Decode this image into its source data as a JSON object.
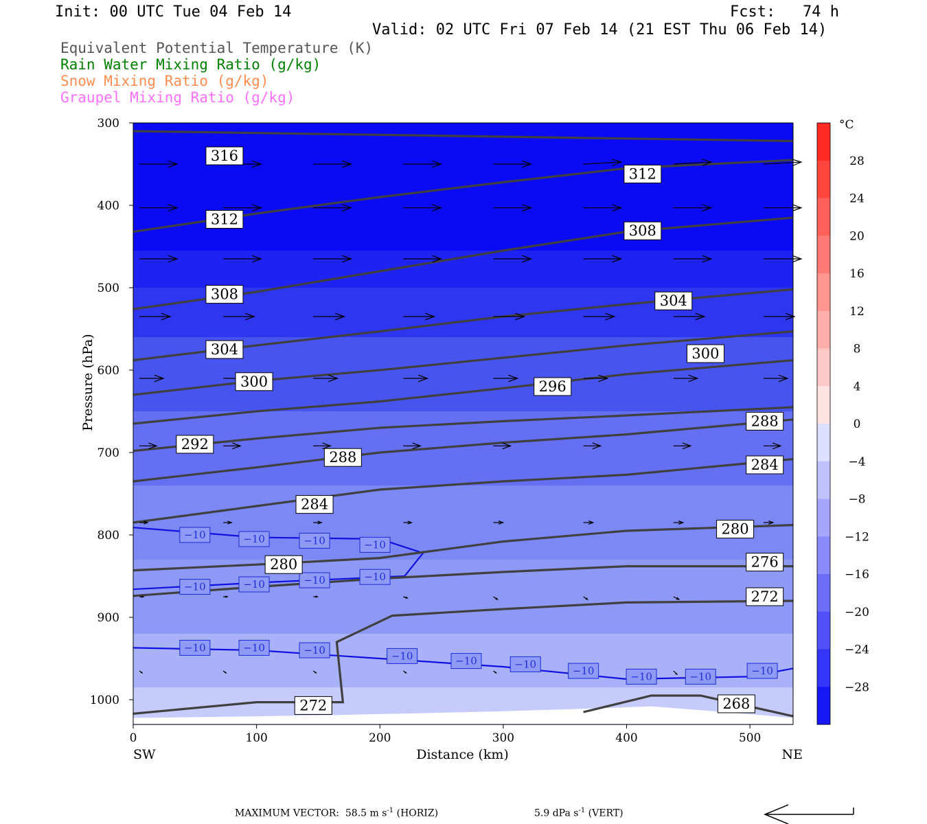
{
  "header": {
    "init": "Init: 00 UTC Tue 04 Feb 14",
    "fcst": "Fcst:   74 h",
    "valid": "Valid: 02 UTC Fri 07 Feb 14 (21 EST Thu 06 Feb 14)"
  },
  "legend": [
    {
      "label": "Equivalent Potential Temperature (K)",
      "color": "#555555"
    },
    {
      "label": "Rain Water Mixing Ratio (g/kg)",
      "color": "#008000"
    },
    {
      "label": "Snow Mixing Ratio (g/kg)",
      "color": "#ff8c50"
    },
    {
      "label": "Graupel Mixing Ratio (g/kg)",
      "color": "#ff70ff"
    }
  ],
  "footer": {
    "max_vector": "MAXIMUM VECTOR:  58.5 m s",
    "horiz_sup": "-1",
    "horiz_unit": " (HORIZ)",
    "vert": "5.9 dPa s",
    "vert_sup": "-1",
    "vert_unit": " (VERT)"
  },
  "colors": {
    "theta_e": "#404040",
    "temp_contour": "#1010e0",
    "background_deep": "#0000f0"
  },
  "chart_data": {
    "type": "cross-section",
    "xlabel": "Distance (km)",
    "ylabel": "Pressure (hPa)",
    "x_endpoints": [
      "SW",
      "NE"
    ],
    "xlim": [
      0,
      535
    ],
    "ylim": [
      1030,
      300
    ],
    "x_ticks": [
      0,
      100,
      200,
      300,
      400,
      500
    ],
    "y_ticks": [
      300,
      400,
      500,
      600,
      700,
      800,
      900,
      1000
    ],
    "colorbar": {
      "unit": "°C",
      "labels": [
        28,
        24,
        20,
        16,
        12,
        8,
        4,
        0,
        -4,
        -8,
        -12,
        -16,
        -20,
        -24,
        -28
      ],
      "range": [
        -32,
        32
      ]
    },
    "theta_e_contours": [
      {
        "value": 316,
        "points": [
          [
            0,
            310
          ],
          [
            535,
            322
          ]
        ]
      },
      {
        "value": 312,
        "points": [
          [
            0,
            432
          ],
          [
            100,
            410
          ],
          [
            200,
            390
          ],
          [
            300,
            372
          ],
          [
            400,
            355
          ],
          [
            535,
            345
          ]
        ]
      },
      {
        "value": 308,
        "points": [
          [
            0,
            526
          ],
          [
            100,
            505
          ],
          [
            200,
            480
          ],
          [
            300,
            455
          ],
          [
            400,
            432
          ],
          [
            535,
            415
          ]
        ]
      },
      {
        "value": 304,
        "points": [
          [
            0,
            588
          ],
          [
            100,
            570
          ],
          [
            200,
            553
          ],
          [
            300,
            535
          ],
          [
            400,
            520
          ],
          [
            535,
            502
          ]
        ]
      },
      {
        "value": 300,
        "points": [
          [
            0,
            630
          ],
          [
            100,
            613
          ],
          [
            200,
            600
          ],
          [
            300,
            585
          ],
          [
            400,
            570
          ],
          [
            535,
            553
          ]
        ]
      },
      {
        "value": 296,
        "points": [
          [
            0,
            665
          ],
          [
            100,
            650
          ],
          [
            200,
            638
          ],
          [
            300,
            622
          ],
          [
            400,
            605
          ],
          [
            535,
            588
          ]
        ]
      },
      {
        "value": 292,
        "points": [
          [
            0,
            698
          ],
          [
            100,
            683
          ],
          [
            200,
            670
          ],
          [
            300,
            662
          ],
          [
            400,
            655
          ],
          [
            535,
            645
          ]
        ]
      },
      {
        "value": 288,
        "points": [
          [
            0,
            735
          ],
          [
            100,
            718
          ],
          [
            200,
            700
          ],
          [
            300,
            688
          ],
          [
            400,
            678
          ],
          [
            535,
            660
          ]
        ]
      },
      {
        "value": 284,
        "points": [
          [
            0,
            785
          ],
          [
            100,
            765
          ],
          [
            200,
            745
          ],
          [
            300,
            735
          ],
          [
            400,
            727
          ],
          [
            535,
            708
          ]
        ]
      },
      {
        "value": 280,
        "points": [
          [
            0,
            843
          ],
          [
            100,
            836
          ],
          [
            200,
            828
          ],
          [
            300,
            808
          ],
          [
            400,
            795
          ],
          [
            535,
            788
          ]
        ]
      },
      {
        "value": 276,
        "points": [
          [
            0,
            874
          ],
          [
            100,
            863
          ],
          [
            200,
            853
          ],
          [
            300,
            845
          ],
          [
            400,
            838
          ],
          [
            535,
            838
          ]
        ]
      },
      {
        "value": 272,
        "points": [
          [
            0,
            1017
          ],
          [
            100,
            1003
          ],
          [
            170,
            1003
          ],
          [
            165,
            930
          ],
          [
            210,
            898
          ],
          [
            300,
            890
          ],
          [
            400,
            882
          ],
          [
            535,
            880
          ]
        ]
      },
      {
        "value": 268,
        "points": [
          [
            365,
            1015
          ],
          [
            420,
            995
          ],
          [
            460,
            995
          ],
          [
            535,
            1020
          ]
        ]
      }
    ],
    "temperature_contours": [
      {
        "value": -10,
        "points": [
          [
            0,
            791
          ],
          [
            100,
            803
          ],
          [
            200,
            805
          ],
          [
            235,
            822
          ],
          [
            220,
            850
          ],
          [
            100,
            858
          ],
          [
            0,
            866
          ]
        ]
      },
      {
        "value": -10,
        "points": [
          [
            0,
            937
          ],
          [
            100,
            940
          ],
          [
            200,
            950
          ],
          [
            300,
            960
          ],
          [
            400,
            975
          ],
          [
            500,
            972
          ],
          [
            535,
            962
          ]
        ]
      }
    ],
    "theta_e_labels": [
      {
        "value": "316",
        "x": 74,
        "p": 340
      },
      {
        "value": "312",
        "x": 74,
        "p": 417
      },
      {
        "value": "308",
        "x": 74,
        "p": 508
      },
      {
        "value": "304",
        "x": 74,
        "p": 575
      },
      {
        "value": "300",
        "x": 98,
        "p": 614
      },
      {
        "value": "292",
        "x": 50,
        "p": 690
      },
      {
        "value": "288",
        "x": 170,
        "p": 706
      },
      {
        "value": "284",
        "x": 147,
        "p": 763
      },
      {
        "value": "280",
        "x": 122,
        "p": 836
      },
      {
        "value": "312",
        "x": 413,
        "p": 362
      },
      {
        "value": "308",
        "x": 413,
        "p": 431
      },
      {
        "value": "304",
        "x": 438,
        "p": 516
      },
      {
        "value": "300",
        "x": 464,
        "p": 580
      },
      {
        "value": "296",
        "x": 340,
        "p": 620
      },
      {
        "value": "288",
        "x": 512,
        "p": 662
      },
      {
        "value": "284",
        "x": 512,
        "p": 715
      },
      {
        "value": "280",
        "x": 488,
        "p": 793
      },
      {
        "value": "276",
        "x": 512,
        "p": 833
      },
      {
        "value": "272",
        "x": 512,
        "p": 875
      },
      {
        "value": "272",
        "x": 146,
        "p": 1007
      },
      {
        "value": "268",
        "x": 489,
        "p": 1005
      }
    ],
    "temperature_labels": [
      {
        "value": "−10",
        "x": 50,
        "p": 800
      },
      {
        "value": "−10",
        "x": 98,
        "p": 805
      },
      {
        "value": "−10",
        "x": 147,
        "p": 807
      },
      {
        "value": "−10",
        "x": 196,
        "p": 812
      },
      {
        "value": "−10",
        "x": 50,
        "p": 863
      },
      {
        "value": "−10",
        "x": 98,
        "p": 860
      },
      {
        "value": "−10",
        "x": 147,
        "p": 855
      },
      {
        "value": "−10",
        "x": 196,
        "p": 851
      },
      {
        "value": "−10",
        "x": 50,
        "p": 937
      },
      {
        "value": "−10",
        "x": 98,
        "p": 937
      },
      {
        "value": "−10",
        "x": 147,
        "p": 940
      },
      {
        "value": "−10",
        "x": 218,
        "p": 947
      },
      {
        "value": "−10",
        "x": 270,
        "p": 953
      },
      {
        "value": "−10",
        "x": 318,
        "p": 957
      },
      {
        "value": "−10",
        "x": 365,
        "p": 965
      },
      {
        "value": "−10",
        "x": 412,
        "p": 972
      },
      {
        "value": "−10",
        "x": 460,
        "p": 972
      },
      {
        "value": "−10",
        "x": 510,
        "p": 965
      }
    ],
    "wind_vectors": {
      "x_positions": [
        5,
        73,
        146,
        219,
        292,
        365,
        438,
        511
      ],
      "levels": [
        {
          "p": 350,
          "len": [
            55,
            55,
            55,
            55,
            55,
            55,
            55,
            55
          ],
          "dy": [
            0,
            0,
            0,
            0,
            0,
            -3,
            -3,
            -3
          ]
        },
        {
          "p": 403,
          "len": [
            55,
            55,
            55,
            55,
            55,
            55,
            55,
            55
          ],
          "dy": [
            0,
            0,
            0,
            0,
            0,
            0,
            0,
            0
          ]
        },
        {
          "p": 465,
          "len": [
            55,
            55,
            55,
            55,
            55,
            55,
            55,
            55
          ],
          "dy": [
            0,
            0,
            0,
            0,
            0,
            0,
            0,
            0
          ]
        },
        {
          "p": 535,
          "len": [
            45,
            45,
            45,
            45,
            45,
            45,
            45,
            45
          ],
          "dy": [
            0,
            0,
            0,
            0,
            0,
            0,
            0,
            0
          ]
        },
        {
          "p": 610,
          "len": [
            35,
            35,
            35,
            35,
            35,
            35,
            35,
            35
          ],
          "dy": [
            0,
            0,
            0,
            0,
            0,
            0,
            0,
            0
          ]
        },
        {
          "p": 692,
          "len": [
            25,
            25,
            25,
            25,
            25,
            25,
            25,
            25
          ],
          "dy": [
            0,
            0,
            0,
            0,
            0,
            0,
            0,
            0
          ]
        },
        {
          "p": 785,
          "len": [
            12,
            12,
            12,
            12,
            14,
            14,
            14,
            14
          ],
          "dy": [
            0,
            0,
            0,
            0,
            0,
            0,
            0,
            0
          ]
        },
        {
          "p": 875,
          "len": [
            6,
            6,
            6,
            6,
            6,
            6,
            8,
            8
          ],
          "dy": [
            0,
            0,
            0,
            2,
            4,
            4,
            4,
            4
          ]
        },
        {
          "p": 965,
          "len": [
            4,
            4,
            4,
            4,
            4,
            4,
            5,
            5
          ],
          "dy": [
            3,
            3,
            3,
            3,
            3,
            3,
            5,
            5
          ]
        }
      ]
    },
    "shading_bands": [
      {
        "p_top": 300,
        "p_bot": 455,
        "color": "#0a0af5"
      },
      {
        "p_top": 455,
        "p_bot": 500,
        "color": "#1e22f3"
      },
      {
        "p_top": 500,
        "p_bot": 560,
        "color": "#2f36f0"
      },
      {
        "p_top": 560,
        "p_bot": 650,
        "color": "#4854ee"
      },
      {
        "p_top": 650,
        "p_bot": 740,
        "color": "#6470f1"
      },
      {
        "p_top": 740,
        "p_bot": 830,
        "color": "#7c88f4"
      },
      {
        "p_top": 830,
        "p_bot": 920,
        "color": "#8e99f6"
      },
      {
        "p_top": 920,
        "p_bot": 985,
        "color": "#a9b2f8"
      },
      {
        "p_top": 985,
        "p_bot": 1030,
        "color": "#c5cbfa"
      }
    ]
  }
}
